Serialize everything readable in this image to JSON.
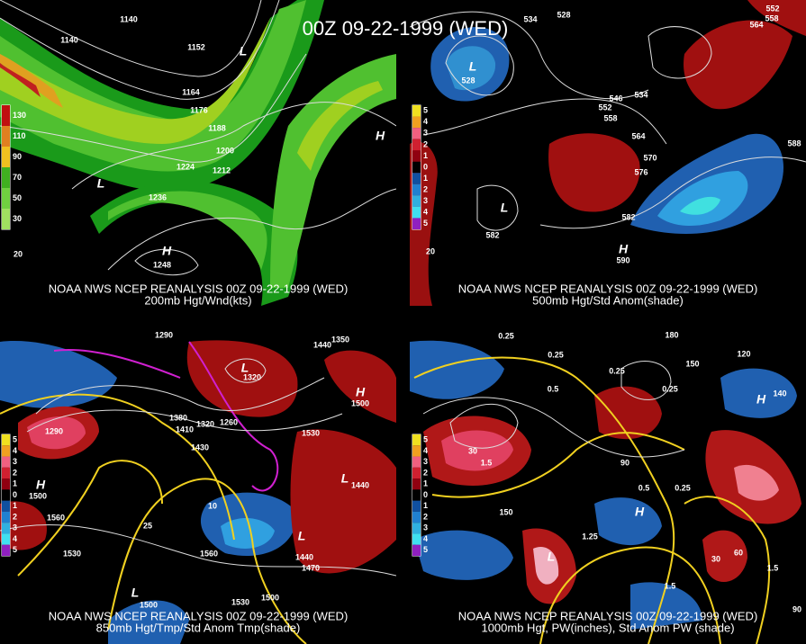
{
  "title": "00Z 09-22-1999 (WED)",
  "panels": [
    {
      "caption": "NOAA NWS NCEP REANALYSIS 00Z 09-22-1999 (WED)",
      "subcaption": "200mb Hgt/Wnd(kts)",
      "colorbar": [
        130,
        110,
        90,
        70,
        50,
        30
      ],
      "labels": [
        1140,
        1140,
        1152,
        "L",
        1164,
        1176,
        1188,
        1200,
        1212,
        1224,
        1236,
        "L",
        "H",
        1248,
        "H",
        20
      ]
    },
    {
      "caption": "NOAA NWS NCEP REANALYSIS 00Z 09-22-1999 (WED)",
      "subcaption": "500mb Hgt/Std Anom(shade)",
      "colorbar": [
        5,
        4,
        3,
        2,
        1,
        0,
        1,
        2,
        3,
        4,
        5
      ],
      "labels": [
        534,
        528,
        552,
        558,
        564,
        "L",
        528,
        534,
        546,
        552,
        558,
        564,
        570,
        576,
        582,
        588,
        "L",
        582,
        "H",
        590,
        20
      ]
    },
    {
      "caption": "NOAA NWS NCEP REANALYSIS 00Z 09-22-1999 (WED)",
      "subcaption": "850mb Hgt/Tmp/Std Anom Tmp(shade)",
      "colorbar": [
        5,
        4,
        3,
        2,
        1,
        0,
        1,
        2,
        3,
        4,
        5
      ],
      "labels": [
        1290,
        1350,
        1440,
        "L",
        1320,
        1380,
        1410,
        1320,
        1260,
        1290,
        1430,
        1530,
        "H",
        1500,
        "H",
        1500,
        "L",
        1440,
        1560,
        1530,
        1560,
        "L",
        1440,
        1470,
        "L",
        1500,
        1530,
        1500,
        10,
        25
      ]
    },
    {
      "caption": "NOAA NWS NCEP REANALYSIS 00Z 09-22-1999 (WED)",
      "subcaption": "1000mb Hgt, PW(inches), Std Anom PW (shade)",
      "colorbar": [
        5,
        4,
        3,
        2,
        1,
        0,
        1,
        2,
        3,
        4,
        5
      ],
      "labels": [
        180,
        150,
        120,
        0.25,
        0.25,
        0.5,
        0.25,
        0.25,
        "H",
        140,
        1.5,
        30,
        90,
        0.5,
        0.25,
        "H",
        150,
        1.25,
        "L",
        30,
        60,
        1.5,
        1.5,
        90
      ]
    }
  ]
}
